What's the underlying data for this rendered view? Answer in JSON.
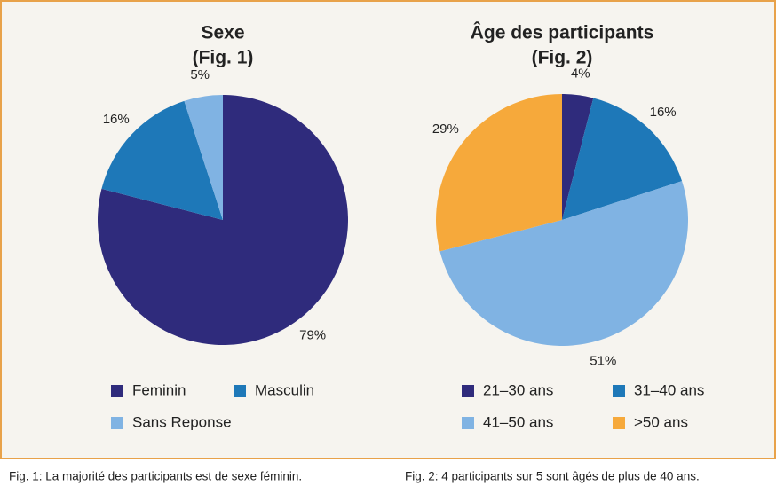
{
  "chart_data": [
    {
      "type": "pie",
      "title": "Sexe",
      "subtitle": "(Fig. 1)",
      "categories": [
        "Feminin",
        "Masculin",
        "Sans Reponse"
      ],
      "values": [
        79,
        16,
        5
      ],
      "value_labels": [
        "79%",
        "16%",
        "5%"
      ],
      "colors": [
        "#2f2b7c",
        "#1e78b8",
        "#80b3e3"
      ],
      "caption": "Fig. 1: La majorité des participants est de sexe féminin."
    },
    {
      "type": "pie",
      "title": "Âge des participants",
      "subtitle": "(Fig. 2)",
      "categories": [
        "21–30 ans",
        "31–40 ans",
        "41–50 ans",
        ">50 ans"
      ],
      "values": [
        4,
        16,
        51,
        29
      ],
      "value_labels": [
        "4%",
        "16%",
        "51%",
        "29%"
      ],
      "colors": [
        "#2f2b7c",
        "#1e78b8",
        "#80b3e3",
        "#f6a93b"
      ],
      "caption": "Fig. 2: 4 participants sur 5 sont âgés de plus de 40 ans."
    }
  ]
}
